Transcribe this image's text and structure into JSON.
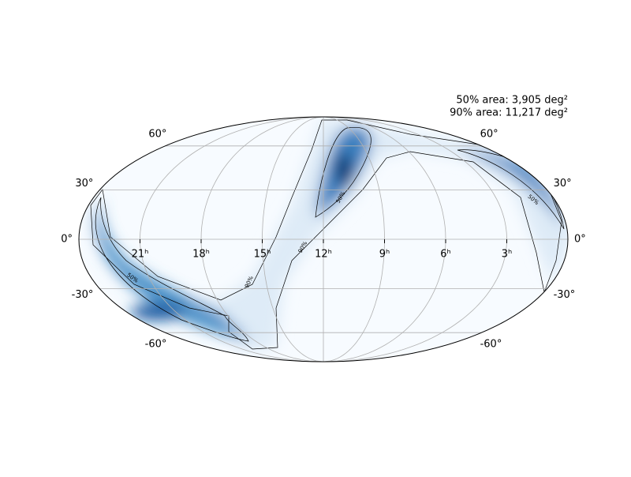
{
  "chart_data": {
    "type": "skymap",
    "annotations": [
      "50% area: 3,905 deg²",
      "90% area: 11,217 deg²"
    ],
    "xlim": [
      24,
      0
    ],
    "xticks": [
      {
        "value": 21,
        "label": "21ʰ"
      },
      {
        "value": 18,
        "label": "18ʰ"
      },
      {
        "value": 15,
        "label": "15ʰ"
      },
      {
        "value": 12,
        "label": "12ʰ"
      },
      {
        "value": 9,
        "label": "9ʰ"
      },
      {
        "value": 6,
        "label": "6ʰ"
      },
      {
        "value": 3,
        "label": "3ʰ"
      }
    ],
    "ylim": [
      -90,
      90
    ],
    "yticks": [
      {
        "value": -60,
        "label": "-60°"
      },
      {
        "value": -30,
        "label": "-30°"
      },
      {
        "value": 0,
        "label": "0°"
      },
      {
        "value": 30,
        "label": "30°"
      },
      {
        "value": 60,
        "label": "60°"
      }
    ],
    "contour_levels": [
      {
        "value": 50,
        "label": "50%"
      },
      {
        "value": 90,
        "label": "90%"
      }
    ],
    "grid": true,
    "color": "#08519c"
  }
}
